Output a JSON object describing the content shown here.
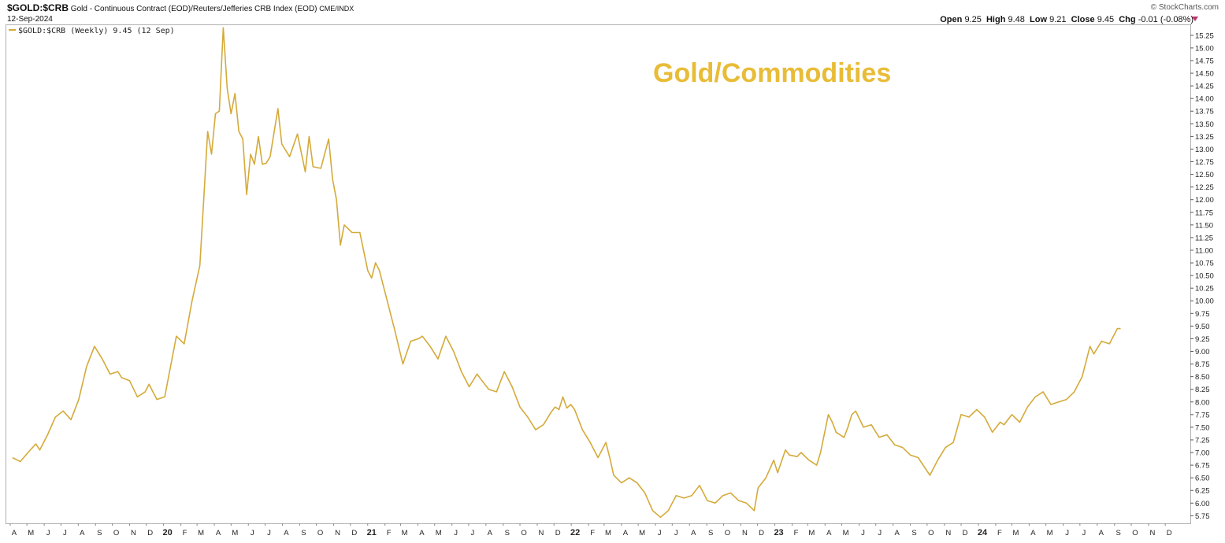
{
  "header": {
    "symbol": "$GOLD:$CRB",
    "description": "Gold - Continuous Contract (EOD)/Reuters/Jefferies CRB Index (EOD)",
    "exchange": "CME/INDX",
    "date": "12-Sep-2024",
    "open_label": "Open",
    "open_value": "9.25",
    "high_label": "High",
    "high_value": "9.48",
    "low_label": "Low",
    "low_value": "9.21",
    "close_label": "Close",
    "close_value": "9.45",
    "chg_label": "Chg",
    "chg_value": "-0.01 (-0.08%)",
    "watermark": "© StockCharts.com"
  },
  "legend_label": "$GOLD:$CRB (Weekly) 9.45 (12 Sep)",
  "annotation": "Gold/Commodities",
  "colors": {
    "line": "#d4aa3a",
    "annotation": "#e8bc36",
    "down_arrow": "#c0306a"
  },
  "chart_data": {
    "type": "line",
    "title": "Gold/Commodities",
    "y_ticks": [
      "15.25",
      "15.00",
      "14.75",
      "14.50",
      "14.25",
      "14.00",
      "13.75",
      "13.50",
      "13.25",
      "13.00",
      "12.75",
      "12.50",
      "12.25",
      "12.00",
      "11.75",
      "11.50",
      "11.25",
      "11.00",
      "10.75",
      "10.50",
      "10.25",
      "10.00",
      "9.75",
      "9.50",
      "9.25",
      "9.00",
      "8.75",
      "8.50",
      "8.25",
      "8.00",
      "7.75",
      "7.50",
      "7.25",
      "7.00",
      "6.75",
      "6.50",
      "6.25",
      "6.00",
      "5.75"
    ],
    "ylim": [
      5.6,
      15.45
    ],
    "y_axis_side": "right",
    "x_ticks": [
      "A",
      "M",
      "J",
      "J",
      "A",
      "S",
      "O",
      "N",
      "D",
      "20",
      "F",
      "M",
      "A",
      "M",
      "J",
      "J",
      "A",
      "S",
      "O",
      "N",
      "D",
      "21",
      "F",
      "M",
      "A",
      "M",
      "J",
      "J",
      "A",
      "S",
      "O",
      "N",
      "D",
      "22",
      "F",
      "M",
      "A",
      "M",
      "J",
      "J",
      "A",
      "S",
      "O",
      "N",
      "D",
      "23",
      "F",
      "M",
      "A",
      "M",
      "J",
      "J",
      "A",
      "S",
      "O",
      "N",
      "D",
      "24",
      "F",
      "M",
      "A",
      "M",
      "J",
      "J",
      "A",
      "S",
      "O",
      "N",
      "D"
    ],
    "year_ticks": [
      "20",
      "21",
      "22",
      "23",
      "24"
    ],
    "series": [
      {
        "name": "$GOLD:$CRB (Weekly)",
        "points": [
          [
            "2019-04-05",
            6.9
          ],
          [
            "2019-04-19",
            6.82
          ],
          [
            "2019-05-03",
            7.0
          ],
          [
            "2019-05-17",
            7.17
          ],
          [
            "2019-05-24",
            7.05
          ],
          [
            "2019-06-07",
            7.35
          ],
          [
            "2019-06-21",
            7.7
          ],
          [
            "2019-07-05",
            7.82
          ],
          [
            "2019-07-19",
            7.65
          ],
          [
            "2019-08-02",
            8.05
          ],
          [
            "2019-08-16",
            8.7
          ],
          [
            "2019-08-30",
            9.1
          ],
          [
            "2019-09-13",
            8.85
          ],
          [
            "2019-09-27",
            8.55
          ],
          [
            "2019-10-11",
            8.6
          ],
          [
            "2019-10-18",
            8.48
          ],
          [
            "2019-11-01",
            8.42
          ],
          [
            "2019-11-15",
            8.1
          ],
          [
            "2019-11-29",
            8.2
          ],
          [
            "2019-12-06",
            8.35
          ],
          [
            "2019-12-20",
            8.05
          ],
          [
            "2020-01-03",
            8.1
          ],
          [
            "2020-01-10",
            8.5
          ],
          [
            "2020-01-24",
            9.3
          ],
          [
            "2020-02-07",
            9.15
          ],
          [
            "2020-02-21",
            10.0
          ],
          [
            "2020-03-06",
            10.7
          ],
          [
            "2020-03-13",
            12.0
          ],
          [
            "2020-03-20",
            13.35
          ],
          [
            "2020-03-27",
            12.9
          ],
          [
            "2020-04-03",
            13.7
          ],
          [
            "2020-04-10",
            13.75
          ],
          [
            "2020-04-17",
            15.4
          ],
          [
            "2020-04-24",
            14.2
          ],
          [
            "2020-05-01",
            13.7
          ],
          [
            "2020-05-08",
            14.1
          ],
          [
            "2020-05-15",
            13.35
          ],
          [
            "2020-05-22",
            13.2
          ],
          [
            "2020-05-29",
            12.1
          ],
          [
            "2020-06-05",
            12.9
          ],
          [
            "2020-06-12",
            12.7
          ],
          [
            "2020-06-19",
            13.25
          ],
          [
            "2020-06-26",
            12.7
          ],
          [
            "2020-07-03",
            12.72
          ],
          [
            "2020-07-10",
            12.85
          ],
          [
            "2020-07-24",
            13.8
          ],
          [
            "2020-07-31",
            13.1
          ],
          [
            "2020-08-14",
            12.85
          ],
          [
            "2020-08-28",
            13.3
          ],
          [
            "2020-09-11",
            12.55
          ],
          [
            "2020-09-18",
            13.25
          ],
          [
            "2020-09-25",
            12.65
          ],
          [
            "2020-10-09",
            12.62
          ],
          [
            "2020-10-23",
            13.2
          ],
          [
            "2020-10-30",
            12.4
          ],
          [
            "2020-11-06",
            12.0
          ],
          [
            "2020-11-13",
            11.1
          ],
          [
            "2020-11-20",
            11.5
          ],
          [
            "2020-12-04",
            11.35
          ],
          [
            "2020-12-18",
            11.35
          ],
          [
            "2021-01-01",
            10.6
          ],
          [
            "2021-01-08",
            10.45
          ],
          [
            "2021-01-15",
            10.75
          ],
          [
            "2021-01-22",
            10.6
          ],
          [
            "2021-02-05",
            10.0
          ],
          [
            "2021-02-19",
            9.4
          ],
          [
            "2021-03-05",
            8.75
          ],
          [
            "2021-03-19",
            9.2
          ],
          [
            "2021-04-02",
            9.25
          ],
          [
            "2021-04-09",
            9.3
          ],
          [
            "2021-04-23",
            9.1
          ],
          [
            "2021-05-07",
            8.85
          ],
          [
            "2021-05-21",
            9.3
          ],
          [
            "2021-06-04",
            9.0
          ],
          [
            "2021-06-18",
            8.6
          ],
          [
            "2021-07-02",
            8.3
          ],
          [
            "2021-07-16",
            8.55
          ],
          [
            "2021-07-30",
            8.35
          ],
          [
            "2021-08-06",
            8.25
          ],
          [
            "2021-08-20",
            8.2
          ],
          [
            "2021-09-03",
            8.6
          ],
          [
            "2021-09-17",
            8.3
          ],
          [
            "2021-10-01",
            7.9
          ],
          [
            "2021-10-15",
            7.7
          ],
          [
            "2021-10-29",
            7.45
          ],
          [
            "2021-11-12",
            7.55
          ],
          [
            "2021-11-26",
            7.8
          ],
          [
            "2021-12-03",
            7.9
          ],
          [
            "2021-12-10",
            7.85
          ],
          [
            "2021-12-17",
            8.1
          ],
          [
            "2021-12-24",
            7.88
          ],
          [
            "2021-12-31",
            7.95
          ],
          [
            "2022-01-07",
            7.85
          ],
          [
            "2022-01-21",
            7.45
          ],
          [
            "2022-02-04",
            7.2
          ],
          [
            "2022-02-18",
            6.9
          ],
          [
            "2022-03-04",
            7.2
          ],
          [
            "2022-03-11",
            6.9
          ],
          [
            "2022-03-18",
            6.55
          ],
          [
            "2022-04-01",
            6.4
          ],
          [
            "2022-04-15",
            6.5
          ],
          [
            "2022-04-29",
            6.4
          ],
          [
            "2022-05-13",
            6.2
          ],
          [
            "2022-05-27",
            5.85
          ],
          [
            "2022-06-10",
            5.72
          ],
          [
            "2022-06-24",
            5.85
          ],
          [
            "2022-07-08",
            6.15
          ],
          [
            "2022-07-22",
            6.1
          ],
          [
            "2022-08-05",
            6.15
          ],
          [
            "2022-08-19",
            6.35
          ],
          [
            "2022-09-02",
            6.05
          ],
          [
            "2022-09-16",
            6.0
          ],
          [
            "2022-09-30",
            6.15
          ],
          [
            "2022-10-14",
            6.2
          ],
          [
            "2022-10-28",
            6.05
          ],
          [
            "2022-11-11",
            6.0
          ],
          [
            "2022-11-25",
            5.85
          ],
          [
            "2022-12-02",
            6.3
          ],
          [
            "2022-12-16",
            6.5
          ],
          [
            "2022-12-30",
            6.85
          ],
          [
            "2023-01-06",
            6.6
          ],
          [
            "2023-01-20",
            7.05
          ],
          [
            "2023-01-27",
            6.95
          ],
          [
            "2023-02-10",
            6.92
          ],
          [
            "2023-02-17",
            7.0
          ],
          [
            "2023-03-03",
            6.85
          ],
          [
            "2023-03-17",
            6.75
          ],
          [
            "2023-03-24",
            7.0
          ],
          [
            "2023-04-07",
            7.75
          ],
          [
            "2023-04-14",
            7.6
          ],
          [
            "2023-04-21",
            7.4
          ],
          [
            "2023-05-05",
            7.3
          ],
          [
            "2023-05-12",
            7.5
          ],
          [
            "2023-05-19",
            7.75
          ],
          [
            "2023-05-26",
            7.82
          ],
          [
            "2023-06-09",
            7.5
          ],
          [
            "2023-06-23",
            7.55
          ],
          [
            "2023-07-07",
            7.3
          ],
          [
            "2023-07-21",
            7.35
          ],
          [
            "2023-08-04",
            7.15
          ],
          [
            "2023-08-18",
            7.1
          ],
          [
            "2023-09-01",
            6.95
          ],
          [
            "2023-09-15",
            6.9
          ],
          [
            "2023-10-06",
            6.55
          ],
          [
            "2023-10-20",
            6.85
          ],
          [
            "2023-11-03",
            7.1
          ],
          [
            "2023-11-17",
            7.2
          ],
          [
            "2023-12-01",
            7.75
          ],
          [
            "2023-12-15",
            7.7
          ],
          [
            "2023-12-29",
            7.85
          ],
          [
            "2024-01-12",
            7.7
          ],
          [
            "2024-01-26",
            7.4
          ],
          [
            "2024-02-09",
            7.6
          ],
          [
            "2024-02-16",
            7.55
          ],
          [
            "2024-03-01",
            7.75
          ],
          [
            "2024-03-15",
            7.6
          ],
          [
            "2024-03-29",
            7.9
          ],
          [
            "2024-04-12",
            8.1
          ],
          [
            "2024-04-26",
            8.2
          ],
          [
            "2024-05-10",
            7.95
          ],
          [
            "2024-05-24",
            8.0
          ],
          [
            "2024-06-07",
            8.05
          ],
          [
            "2024-06-21",
            8.2
          ],
          [
            "2024-07-05",
            8.5
          ],
          [
            "2024-07-19",
            9.1
          ],
          [
            "2024-07-26",
            8.95
          ],
          [
            "2024-08-09",
            9.2
          ],
          [
            "2024-08-23",
            9.15
          ],
          [
            "2024-09-06",
            9.45
          ],
          [
            "2024-09-12",
            9.45
          ]
        ]
      }
    ],
    "grid": false,
    "legend": "top-left"
  }
}
